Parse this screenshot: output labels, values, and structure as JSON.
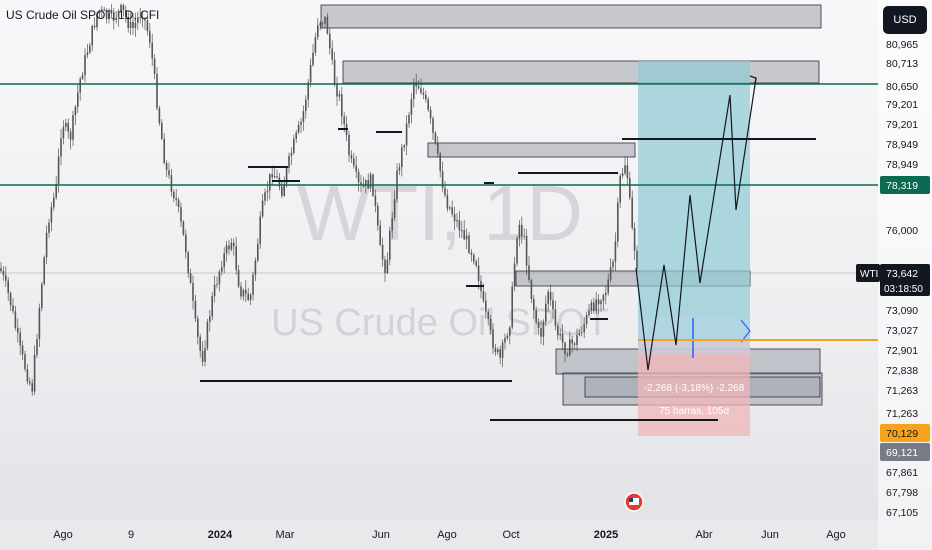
{
  "header": {
    "title": "US Crude Oil SPOT, 1D, CFI",
    "currency": "USD"
  },
  "watermark": {
    "symbol": "WTI, 1D",
    "name": "US Crude Oil SPOT"
  },
  "colors": {
    "candles": "#555555",
    "green_line": "#0a6b52",
    "orange_line": "#f7a21b",
    "zone_fill": "#9ea3ab",
    "profit_fill": "#8fcad3",
    "loss_fill": "#f0b5b8",
    "black": "#131722"
  },
  "chart_data": {
    "type": "candlestick",
    "title": "US Crude Oil SPOT, 1D, CFI",
    "x_tick_labels": [
      "Ago",
      "9",
      "2024",
      "Mar",
      "Jun",
      "Ago",
      "Oct",
      "2025",
      "Abr",
      "Jun",
      "Ago"
    ],
    "y_tick_labels": [
      "80,965",
      "80,713",
      "80,650",
      "79,201",
      "79,201",
      "78,949",
      "78,949",
      "78,319",
      "76,000",
      "73,642",
      "73,090",
      "73,027",
      "72,901",
      "72,838",
      "71,263",
      "71,263",
      "70,129",
      "69,121",
      "67,861",
      "67,798",
      "67,105"
    ],
    "highlighted_prices": [
      {
        "label": "78,319",
        "color": "#0a6b52"
      },
      {
        "label": "73,642",
        "color": "#131722",
        "tag": "WTI",
        "countdown": "03:18:50"
      },
      {
        "label": "70,129",
        "color": "#f7a21b"
      },
      {
        "label": "69,121",
        "color": "#787b86"
      }
    ],
    "horizontal_lines": [
      {
        "price": 80.65,
        "color": "green"
      },
      {
        "price": 78.319,
        "color": "green"
      },
      {
        "price": 73.027,
        "color": "orange"
      }
    ],
    "measure_label": "-2,268 (-3,18%) -2.268",
    "bars_label": "75 barras, 105d",
    "grid": false
  }
}
